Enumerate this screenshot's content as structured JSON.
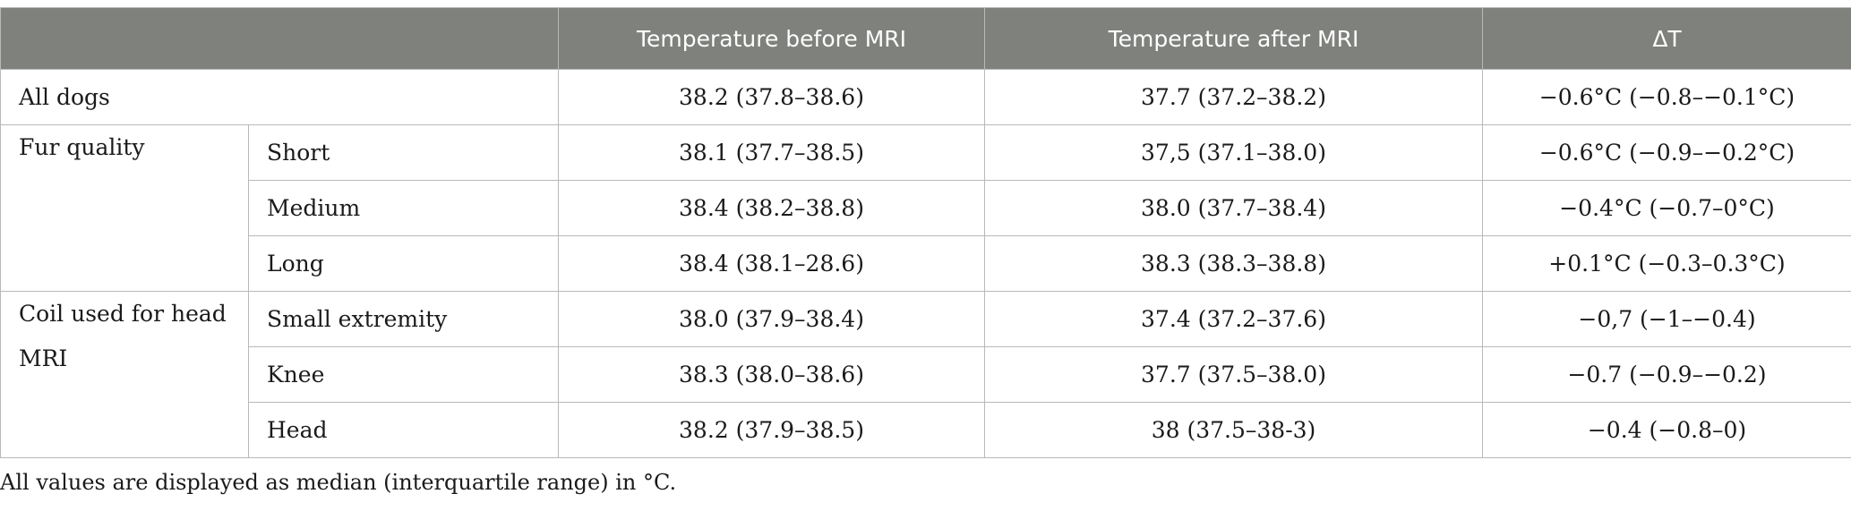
{
  "table": {
    "headers": [
      "",
      "Temperature before MRI",
      "Temperature after MRI",
      "ΔT"
    ],
    "all_dogs": {
      "label": "All dogs",
      "before": "38.2 (37.8–38.6)",
      "after": "37.7 (37.2–38.2)",
      "delta": "−0.6°C (−0.8–−0.1°C)"
    },
    "groups": [
      {
        "label": "Fur quality",
        "rows": [
          {
            "sub": "Short",
            "before": "38.1 (37.7–38.5)",
            "after": "37,5 (37.1–38.0)",
            "delta": "−0.6°C (−0.9–−0.2°C)"
          },
          {
            "sub": "Medium",
            "before": "38.4 (38.2–38.8)",
            "after": "38.0 (37.7–38.4)",
            "delta": "−0.4°C (−0.7–0°C)"
          },
          {
            "sub": "Long",
            "before": "38.4 (38.1–28.6)",
            "after": "38.3 (38.3–38.8)",
            "delta": "+0.1°C (−0.3–0.3°C)"
          }
        ]
      },
      {
        "label": "Coil used for head MRI",
        "rows": [
          {
            "sub": "Small extremity",
            "before": "38.0 (37.9–38.4)",
            "after": "37.4 (37.2–37.6)",
            "delta": "−0,7 (−1–−0.4)"
          },
          {
            "sub": "Knee",
            "before": "38.3 (38.0–38.6)",
            "after": "37.7 (37.5–38.0)",
            "delta": "−0.7 (−0.9–−0.2)"
          },
          {
            "sub": "Head",
            "before": "38.2 (37.9–38.5)",
            "after": "38 (37.5–38-3)",
            "delta": "−0.4 (−0.8–0)"
          }
        ]
      }
    ]
  },
  "footnote": "All values are displayed as median (interquartile range) in °C."
}
